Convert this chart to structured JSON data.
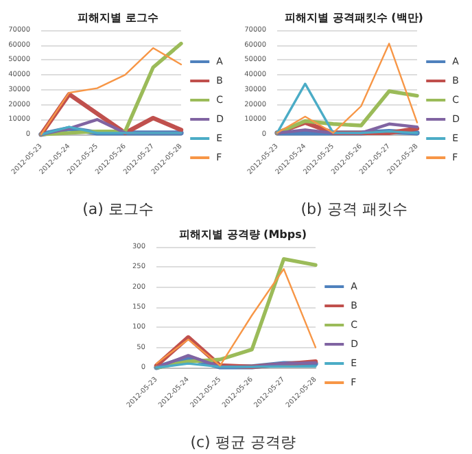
{
  "chart_data": [
    {
      "type": "line",
      "title": "피해지별 로그수",
      "annotations": [
        "(a) 로그수"
      ],
      "categories": [
        "2012-05-23",
        "2012-05-24",
        "2012-05-25",
        "2012-05-26",
        "2012-05-27",
        "2012-05-28"
      ],
      "ylim": [
        0,
        70000
      ],
      "yticks": [
        0,
        10000,
        20000,
        30000,
        40000,
        50000,
        60000,
        70000
      ],
      "grid": "y",
      "legend": "right",
      "marker": "none",
      "series": [
        {
          "name": "A",
          "color": "#4f81bd",
          "values": [
            0,
            4000,
            1000,
            1000,
            1000,
            1000
          ]
        },
        {
          "name": "B",
          "color": "#c0504d",
          "values": [
            0,
            27000,
            14000,
            1000,
            11000,
            3000
          ]
        },
        {
          "name": "C",
          "color": "#9bbb59",
          "values": [
            0,
            1000,
            2000,
            2000,
            45000,
            61000
          ]
        },
        {
          "name": "D",
          "color": "#8064a2",
          "values": [
            0,
            4000,
            10000,
            1000,
            1000,
            1000
          ]
        },
        {
          "name": "E",
          "color": "#4bacc6",
          "values": [
            0,
            5000,
            1000,
            1000,
            1000,
            1000
          ]
        },
        {
          "name": "F",
          "color": "#f79646",
          "values": [
            0,
            28000,
            31000,
            40000,
            58000,
            47000
          ]
        }
      ]
    },
    {
      "type": "line",
      "title": "피해지별 공격패킷수 (백만)",
      "annotations": [
        "(b) 공격 패킷수"
      ],
      "categories": [
        "2012-05-23",
        "2012-05-24",
        "2012-05-25",
        "2012-05-26",
        "2012-05-27",
        "2012-05-28"
      ],
      "ylim": [
        0,
        70000
      ],
      "yticks": [
        0,
        10000,
        20000,
        30000,
        40000,
        50000,
        60000,
        70000
      ],
      "grid": "y",
      "legend": "right",
      "marker": "none",
      "series": [
        {
          "name": "A",
          "color": "#4f81bd",
          "values": [
            1000,
            1000,
            1000,
            1000,
            2000,
            1000
          ]
        },
        {
          "name": "B",
          "color": "#c0504d",
          "values": [
            1000,
            8000,
            1000,
            1000,
            1000,
            4000
          ]
        },
        {
          "name": "C",
          "color": "#9bbb59",
          "values": [
            1000,
            9000,
            7000,
            6000,
            29000,
            26000
          ]
        },
        {
          "name": "D",
          "color": "#8064a2",
          "values": [
            1000,
            3000,
            1000,
            1000,
            7000,
            5000
          ]
        },
        {
          "name": "E",
          "color": "#4bacc6",
          "values": [
            1000,
            34000,
            1000,
            1000,
            2000,
            1000
          ]
        },
        {
          "name": "F",
          "color": "#f79646",
          "values": [
            1000,
            12000,
            1000,
            19000,
            61000,
            8000
          ]
        }
      ]
    },
    {
      "type": "line",
      "title": "피해지별 공격량 (Mbps)",
      "annotations": [
        "(c) 평균 공격량"
      ],
      "categories": [
        "2012-05-23",
        "2012-05-24",
        "2012-05-25",
        "2012-05-26",
        "2012-05-27",
        "2012-05-28"
      ],
      "ylim": [
        0,
        300
      ],
      "yticks": [
        0,
        50,
        100,
        150,
        200,
        250,
        300
      ],
      "grid": "y",
      "legend": "right",
      "marker": "none",
      "series": [
        {
          "name": "A",
          "color": "#4f81bd",
          "values": [
            0,
            25,
            2,
            2,
            10,
            10
          ]
        },
        {
          "name": "B",
          "color": "#c0504d",
          "values": [
            5,
            75,
            5,
            2,
            8,
            15
          ]
        },
        {
          "name": "C",
          "color": "#9bbb59",
          "values": [
            0,
            15,
            20,
            45,
            270,
            255
          ]
        },
        {
          "name": "D",
          "color": "#8064a2",
          "values": [
            0,
            30,
            2,
            2,
            10,
            12
          ]
        },
        {
          "name": "E",
          "color": "#4bacc6",
          "values": [
            0,
            10,
            2,
            2,
            3,
            3
          ]
        },
        {
          "name": "F",
          "color": "#f79646",
          "values": [
            10,
            70,
            5,
            130,
            245,
            50
          ]
        }
      ]
    }
  ]
}
